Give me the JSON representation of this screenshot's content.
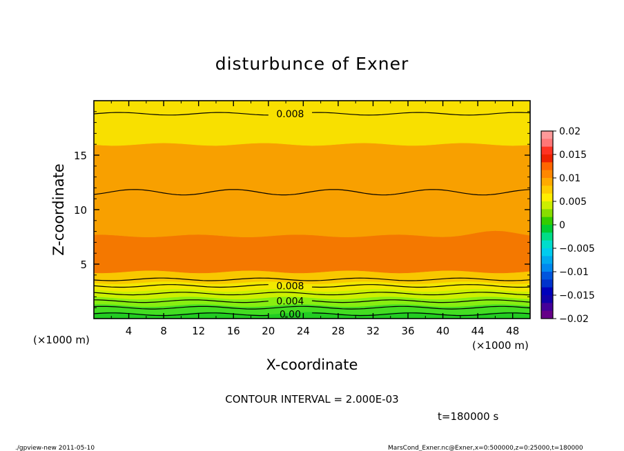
{
  "chart_data": {
    "type": "contour",
    "title": "disturbunce of Exner",
    "xlabel": "X-coordinate",
    "ylabel": "Z-coordinate",
    "x_unit": "(×1000 m)",
    "y_unit": "(×1000 m)",
    "xlim": [
      0,
      50
    ],
    "ylim": [
      0,
      20
    ],
    "x_ticks": [
      4,
      8,
      12,
      16,
      20,
      24,
      28,
      32,
      36,
      40,
      44,
      48
    ],
    "y_ticks": [
      5,
      10,
      15
    ],
    "contour_interval_text": "CONTOUR INTERVAL = 2.000E-03",
    "time_text": "t=180000 s",
    "bands": [
      {
        "z_bottom": 0.0,
        "z_top": 0.5,
        "color": "#22cc22"
      },
      {
        "z_bottom": 0.5,
        "z_top": 1.2,
        "color": "#44dd22"
      },
      {
        "z_bottom": 1.2,
        "z_top": 1.9,
        "color": "#88ee11"
      },
      {
        "z_bottom": 1.9,
        "z_top": 2.6,
        "color": "#ccf000"
      },
      {
        "z_bottom": 2.6,
        "z_top": 3.3,
        "color": "#f2e800"
      },
      {
        "z_bottom": 3.3,
        "z_top": 4.3,
        "color": "#f8c800"
      },
      {
        "z_bottom": 4.3,
        "z_top": 7.6,
        "color": "#f47800"
      },
      {
        "z_bottom": 7.6,
        "z_top": 16.0,
        "color": "#f8a000"
      },
      {
        "z_bottom": 16.0,
        "z_top": 20.0,
        "color": "#f8e000"
      }
    ],
    "contours": [
      {
        "z": 0.4,
        "label": "0.00",
        "label_x": 22.5
      },
      {
        "z": 1.0,
        "label": "",
        "label_x": null
      },
      {
        "z": 1.6,
        "label": "0.004",
        "label_x": 22.5
      },
      {
        "z": 2.3,
        "label": "",
        "label_x": null
      },
      {
        "z": 3.0,
        "label": "0.008",
        "label_x": 22.5
      },
      {
        "z": 3.6,
        "label": "",
        "label_x": null
      },
      {
        "z": 11.6,
        "label": "",
        "label_x": null
      },
      {
        "z": 18.8,
        "label": "0.008",
        "label_x": 22.5
      }
    ],
    "colorbar": {
      "min": -0.02,
      "max": 0.02,
      "tick_labels": [
        "0.02",
        "0.015",
        "0.01",
        "0.005",
        "0",
        "−0.005",
        "−0.01",
        "−0.015",
        "−0.02"
      ],
      "colors": [
        "#ff9999",
        "#ff7777",
        "#ff3322",
        "#ee2200",
        "#ff6600",
        "#ff8800",
        "#ffaa00",
        "#ffcc00",
        "#ffee00",
        "#ccee00",
        "#88dd00",
        "#33cc00",
        "#00cc33",
        "#00dd88",
        "#00ddcc",
        "#00ccee",
        "#00aaee",
        "#0088ee",
        "#0055dd",
        "#0033cc",
        "#0000bb",
        "#1100aa",
        "#440099",
        "#660088"
      ]
    }
  },
  "footer": {
    "left": "./gpview-new  2011-05-10",
    "right": "MarsCond_Exner.nc@Exner,x=0:500000,z=0:25000,t=180000"
  }
}
